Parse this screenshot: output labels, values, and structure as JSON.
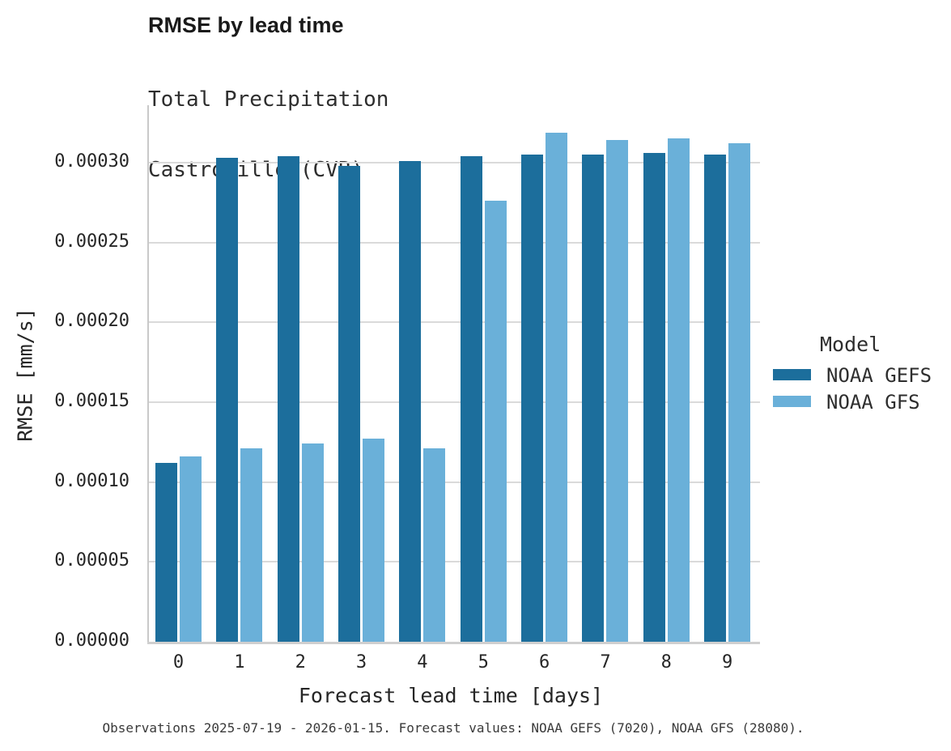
{
  "chart_data": {
    "type": "bar",
    "title": "RMSE by lead time",
    "subtitle": [
      "Total Precipitation",
      "Castroville (CVB)"
    ],
    "xlabel": "Forecast lead time [days]",
    "ylabel": "RMSE [mm/s]",
    "categories": [
      "0",
      "1",
      "2",
      "3",
      "4",
      "5",
      "6",
      "7",
      "8",
      "9"
    ],
    "series": [
      {
        "name": "NOAA GEFS",
        "color": "#1c6e9c",
        "values": [
          0.000112,
          0.000303,
          0.000304,
          0.000298,
          0.000301,
          0.000304,
          0.000305,
          0.000305,
          0.000306,
          0.000305
        ]
      },
      {
        "name": "NOAA GFS",
        "color": "#6ab0d9",
        "values": [
          0.000116,
          0.000121,
          0.000124,
          0.000127,
          0.000121,
          0.000276,
          0.000319,
          0.000314,
          0.000315,
          0.000312
        ]
      }
    ],
    "ylim": [
      0,
      0.000336
    ],
    "yticks": [
      {
        "value": 0.0,
        "label": "0.00000"
      },
      {
        "value": 5e-05,
        "label": "0.00005"
      },
      {
        "value": 0.0001,
        "label": "0.00010"
      },
      {
        "value": 0.00015,
        "label": "0.00015"
      },
      {
        "value": 0.0002,
        "label": "0.00020"
      },
      {
        "value": 0.00025,
        "label": "0.00025"
      },
      {
        "value": 0.0003,
        "label": "0.00030"
      }
    ],
    "grid": true,
    "legend_position": "right",
    "legend_title": "Model",
    "caption": "Observations 2025-07-19 - 2026-01-15. Forecast values: NOAA GEFS (7020), NOAA GFS (28080)."
  }
}
